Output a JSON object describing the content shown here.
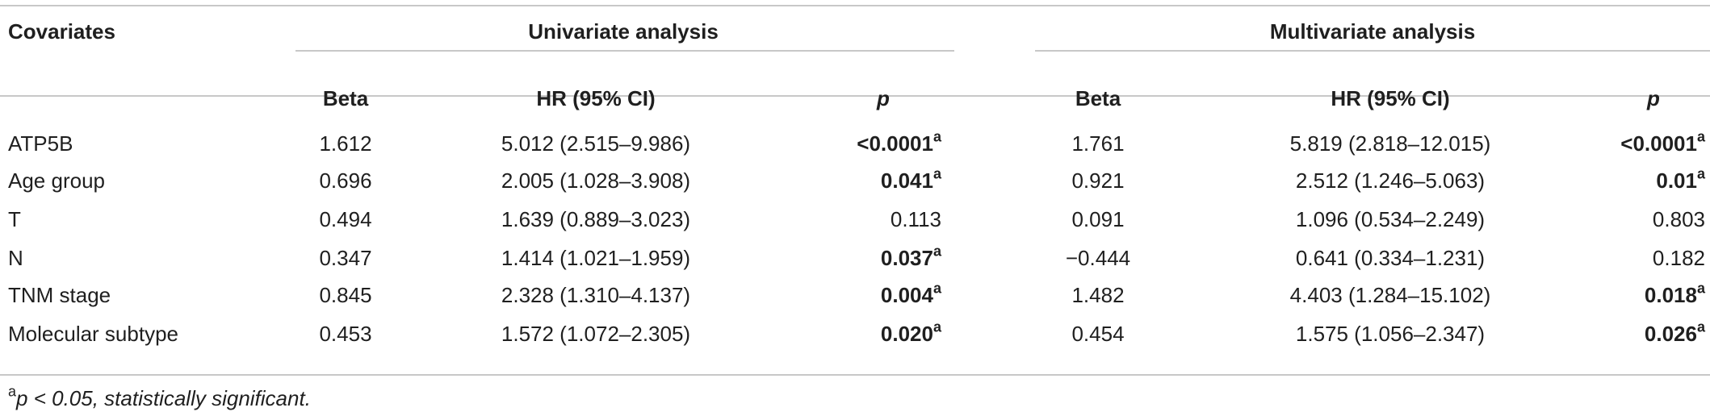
{
  "table": {
    "header": {
      "covariates": "Covariates",
      "univariate": "Univariate analysis",
      "multivariate": "Multivariate analysis",
      "beta": "Beta",
      "hr": "HR (95% CI)",
      "p": "p"
    },
    "rows": [
      {
        "label": "ATP5B",
        "u_beta": "1.612",
        "u_hr": "5.012 (2.515–9.986)",
        "u_p": "<0.0001",
        "u_sig": "a",
        "m_beta": "1.761",
        "m_hr": "5.819 (2.818–12.015)",
        "m_p": "<0.0001",
        "m_sig": "a"
      },
      {
        "label": "Age group",
        "u_beta": "0.696",
        "u_hr": "2.005 (1.028–3.908)",
        "u_p": "0.041",
        "u_sig": "a",
        "m_beta": "0.921",
        "m_hr": "2.512 (1.246–5.063)",
        "m_p": "0.01",
        "m_sig": "a"
      },
      {
        "label": "T",
        "u_beta": "0.494",
        "u_hr": "1.639 (0.889–3.023)",
        "u_p": "0.113",
        "u_sig": "",
        "m_beta": "0.091",
        "m_hr": "1.096 (0.534–2.249)",
        "m_p": "0.803",
        "m_sig": ""
      },
      {
        "label": "N",
        "u_beta": "0.347",
        "u_hr": "1.414 (1.021–1.959)",
        "u_p": "0.037",
        "u_sig": "a",
        "m_beta": "−0.444",
        "m_hr": "0.641 (0.334–1.231)",
        "m_p": "0.182",
        "m_sig": ""
      },
      {
        "label": "TNM stage",
        "u_beta": "0.845",
        "u_hr": "2.328 (1.310–4.137)",
        "u_p": "0.004",
        "u_sig": "a",
        "m_beta": "1.482",
        "m_hr": "4.403 (1.284–15.102)",
        "m_p": "0.018",
        "m_sig": "a"
      },
      {
        "label": "Molecular subtype",
        "u_beta": "0.453",
        "u_hr": "1.572 (1.072–2.305)",
        "u_p": "0.020",
        "u_sig": "a",
        "m_beta": "0.454",
        "m_hr": "1.575 (1.056–2.347)",
        "m_p": "0.026",
        "m_sig": "a"
      }
    ],
    "footnote": {
      "marker": "a",
      "text": "p < 0.05, statistically significant."
    }
  }
}
